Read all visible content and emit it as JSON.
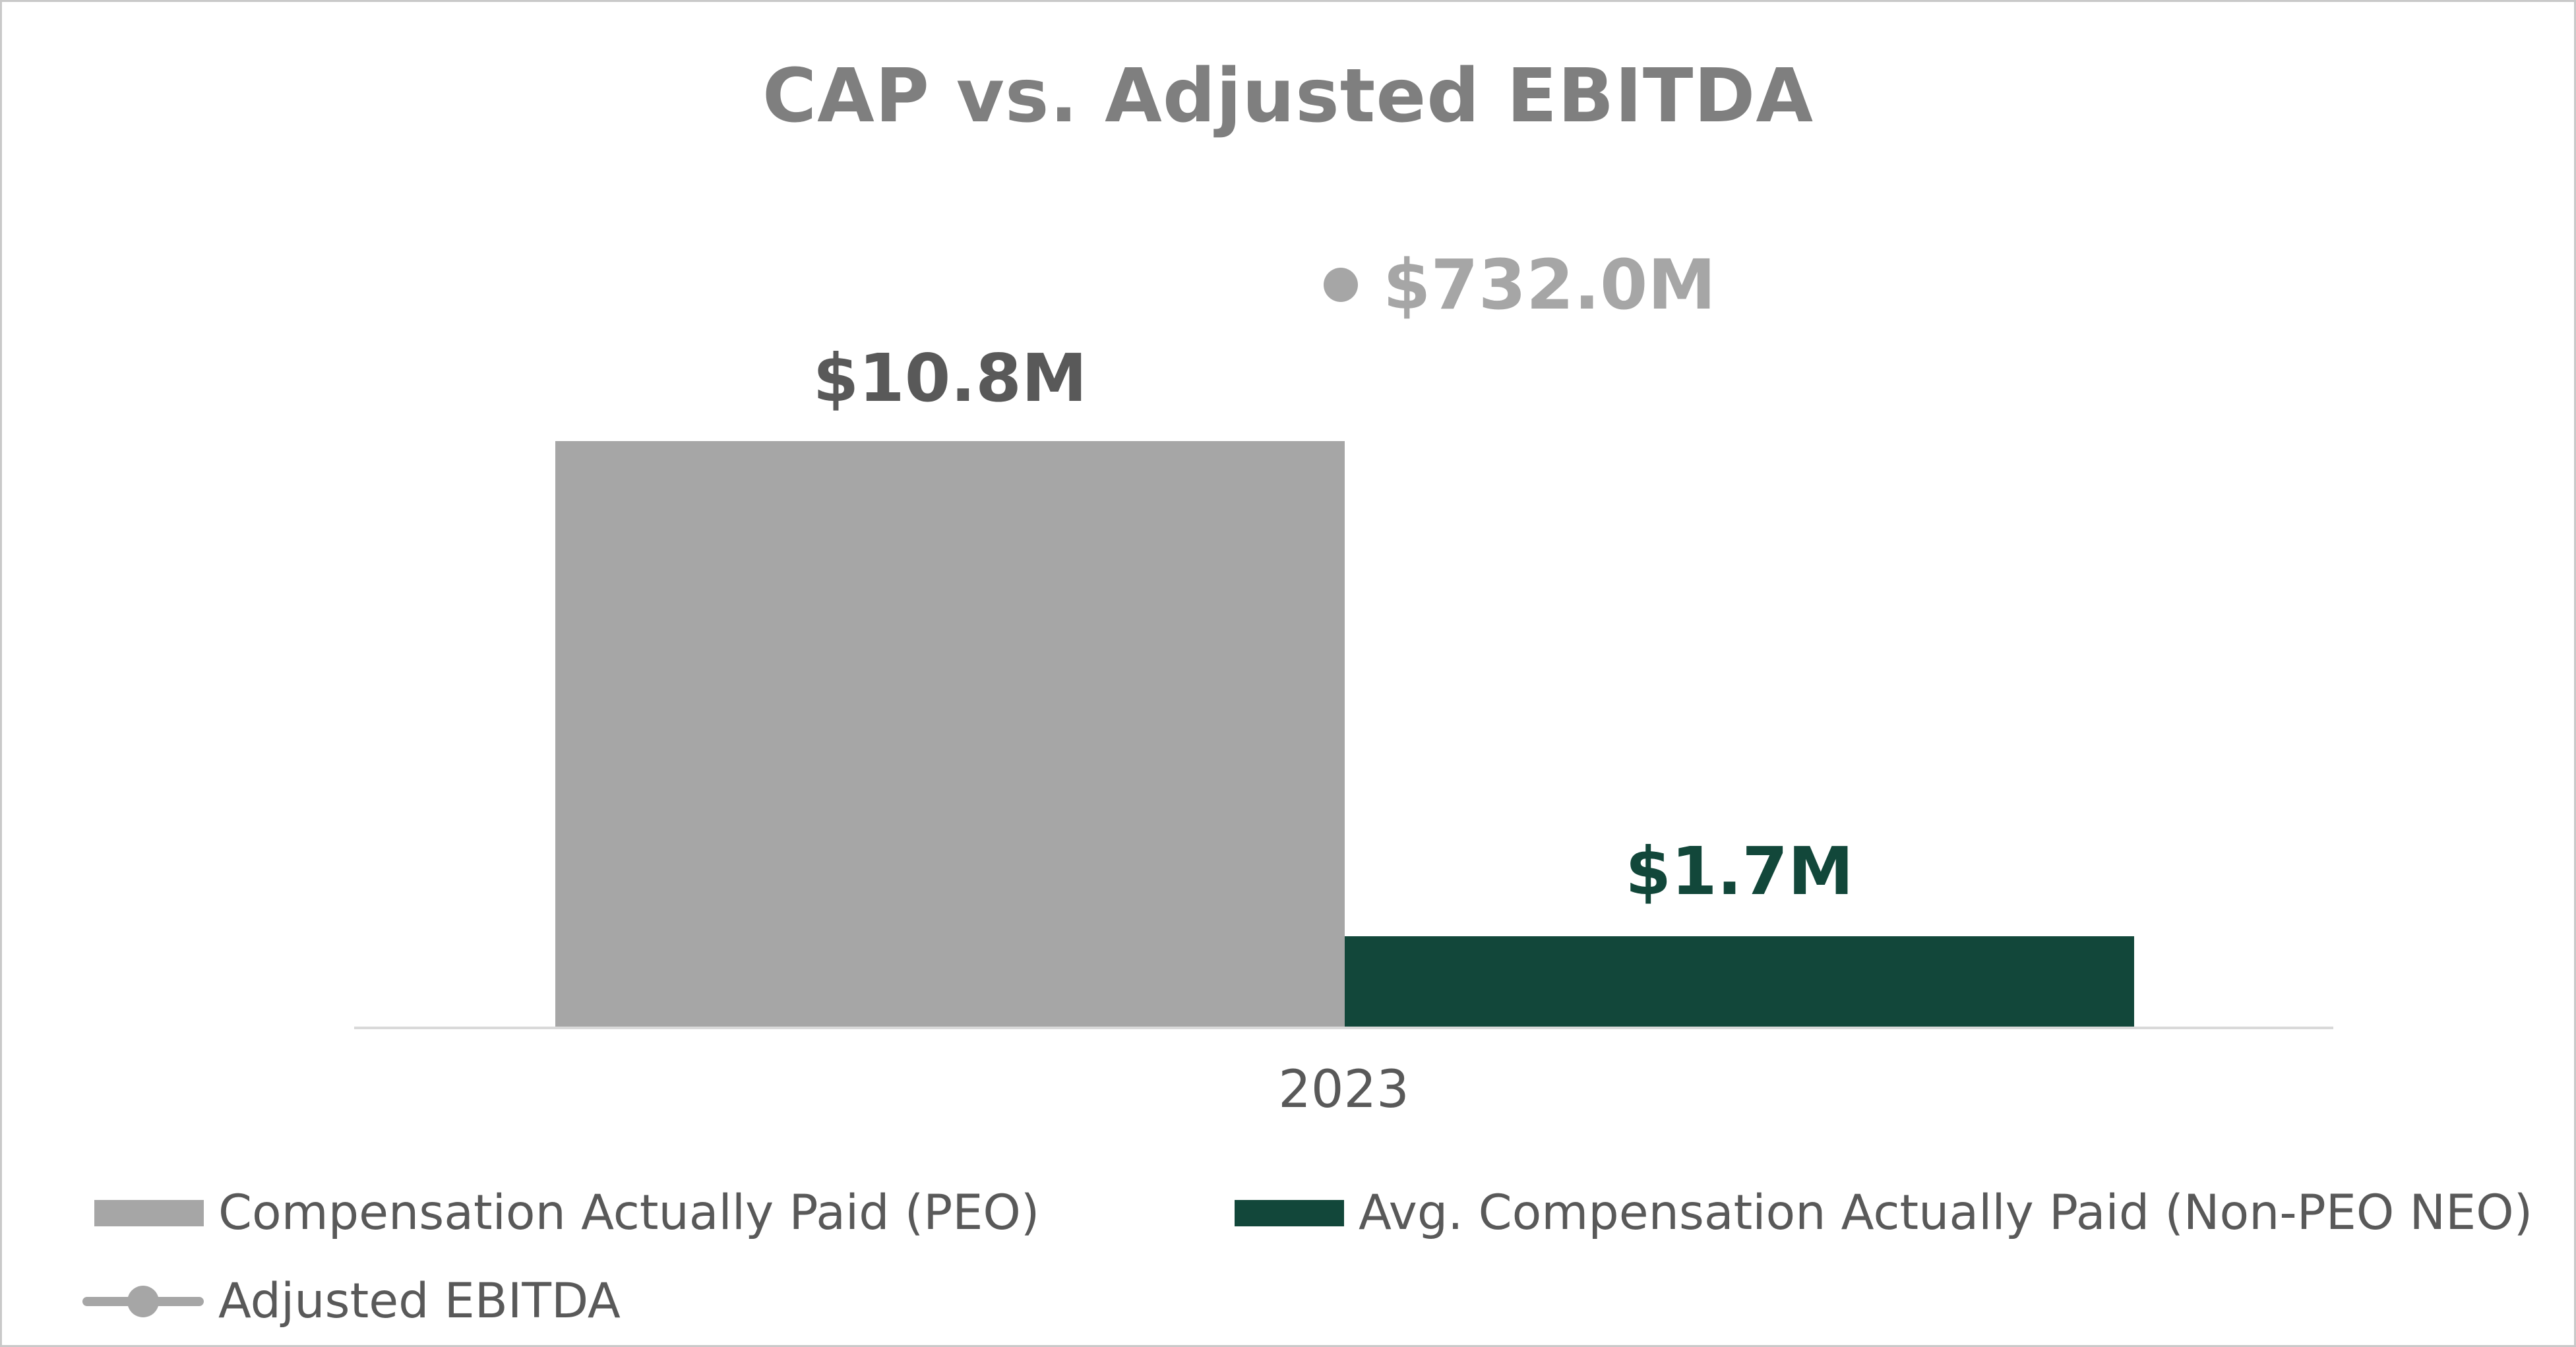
{
  "chart_data": {
    "type": "bar",
    "title": "CAP vs. Adjusted EBITDA",
    "categories": [
      "2023"
    ],
    "series": [
      {
        "name": "Compensation Actually Paid (PEO)",
        "type": "bar",
        "values": [
          10.8
        ],
        "data_labels": [
          "$10.8M"
        ],
        "color": "#a6a6a6"
      },
      {
        "name": "Avg. Compensation Actually Paid (Non-PEO NEO)",
        "type": "bar",
        "values": [
          1.7
        ],
        "data_labels": [
          "$1.7M"
        ],
        "color": "#12473a"
      },
      {
        "name": "Adjusted EBITDA",
        "type": "scatter",
        "values": [
          732.0
        ],
        "data_labels": [
          "$732.0M"
        ],
        "color": "#a6a6a6"
      }
    ],
    "unit": "millions USD",
    "xlabel": "",
    "ylabel": "",
    "grid": false,
    "legend_position": "bottom",
    "colors": {
      "title_text": "#7f7f7f",
      "bar_label_text": "#595959",
      "axis_line": "#d9d9d9",
      "legend_text": "#595959",
      "background": "#ffffff"
    }
  }
}
